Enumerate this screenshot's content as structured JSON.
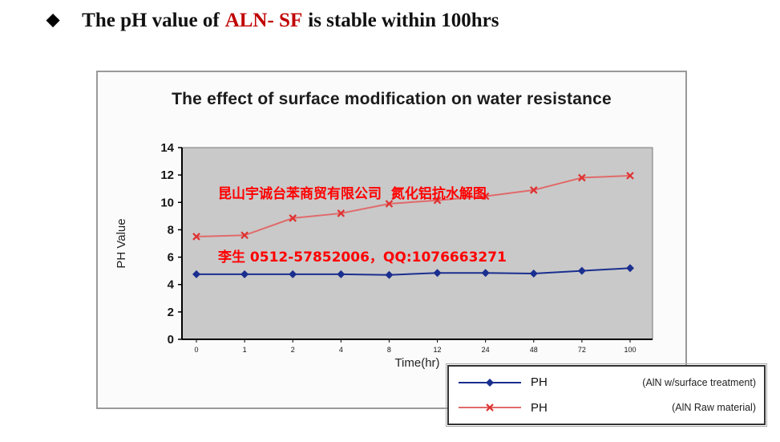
{
  "header": {
    "bullet": "◆",
    "prefix": "The pH value of",
    "highlight": "ALN- SF",
    "suffix": "is stable within 100hrs",
    "highlight_color": "#c00000"
  },
  "watermark": {
    "line1": "昆山宇诚台苯商贸有限公司  氮化铝抗水解图",
    "line2": "李生 0512-57852006，QQ:1076663271",
    "color": "#ff0000"
  },
  "chart_data": {
    "type": "line",
    "title": "The effect of surface modification on water resistance",
    "xlabel": "Time(hr)",
    "ylabel": "PH  Value",
    "categories": [
      "0",
      "1",
      "2",
      "4",
      "8",
      "12",
      "24",
      "48",
      "72",
      "100"
    ],
    "ylim": [
      0,
      14
    ],
    "ytick_step": 2,
    "grid": false,
    "plot_bg": "#c9c9c9",
    "legend_position": "bottom-right",
    "series": [
      {
        "name": "PH",
        "description": "(AlN w/surface treatment)",
        "color": "#1a2f8f",
        "marker": "diamond",
        "values": [
          4.75,
          4.75,
          4.75,
          4.75,
          4.7,
          4.85,
          4.85,
          4.8,
          5.0,
          5.2
        ]
      },
      {
        "name": "PH",
        "description": "(AlN  Raw material)",
        "color": "#e06a6a",
        "marker": "x",
        "marker_color": "#e03030",
        "values": [
          7.5,
          7.6,
          8.85,
          9.2,
          9.9,
          10.15,
          10.45,
          10.9,
          11.8,
          11.95
        ]
      }
    ]
  }
}
